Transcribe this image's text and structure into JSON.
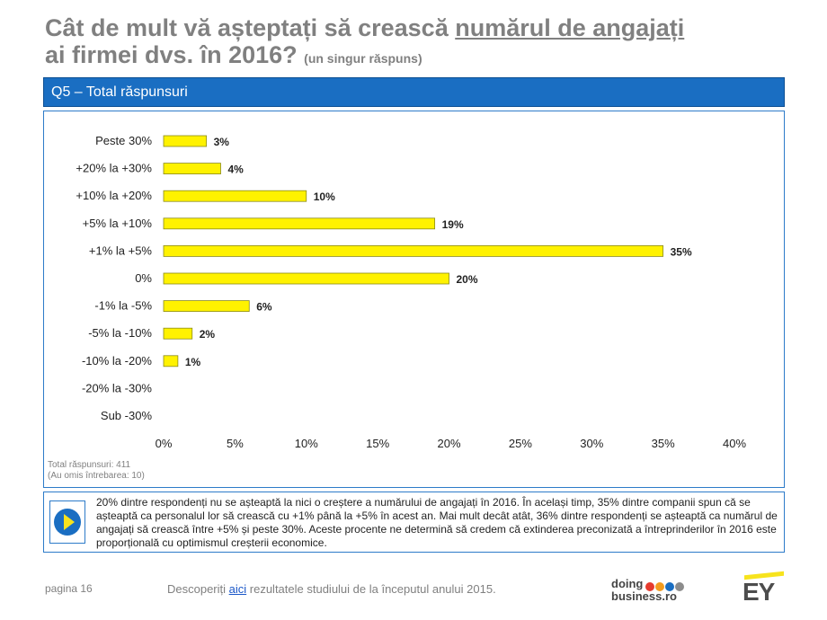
{
  "header": {
    "title_part1": "Cât de mult vă așteptați să crească ",
    "title_underlined": "numărul de angajați",
    "title_part2": "ai firmei dvs. în 2016?",
    "title_note": "(un singur răspuns)"
  },
  "section_bar": {
    "label": "Q5 – Total răspunsuri"
  },
  "chart_data": {
    "type": "bar",
    "orientation": "horizontal",
    "categories": [
      "Peste 30%",
      "+20% la +30%",
      "+10% la +20%",
      "+5% la +10%",
      "+1% la +5%",
      "0%",
      "-1% la -5%",
      "-5% la -10%",
      "-10% la -20%",
      "-20% la -30%",
      "Sub -30%"
    ],
    "values": [
      3,
      4,
      10,
      19,
      35,
      20,
      6,
      2,
      1,
      null,
      null
    ],
    "data_labels": [
      "3%",
      "4%",
      "10%",
      "19%",
      "35%",
      "20%",
      "6%",
      "2%",
      "1%",
      "",
      ""
    ],
    "xlim": [
      0,
      40
    ],
    "xticks": [
      "0%",
      "5%",
      "10%",
      "15%",
      "20%",
      "25%",
      "30%",
      "35%",
      "40%"
    ],
    "bar_color": "#fff200",
    "bar_edge_color": "#8a8a1a",
    "grid": false
  },
  "footnote": {
    "line1": "Total răspunsuri: 411",
    "line2": "(Au omis întrebarea: 10)"
  },
  "summary": {
    "icon": "play-icon",
    "text": "20% dintre respondenți nu se așteaptă la nici o creștere a numărului de angajați în 2016. În același timp, 35% dintre companii spun că se așteaptă ca personalul lor să crească cu +1% până la +5% în acest an. Mai mult decât atât, 36% dintre respondenți se așteaptă ca numărul de angajați să crească între +5% și peste 30%. Aceste procente ne determină să credem că extinderea preconizată a întreprinderilor în 2016 este proporțională cu optimismul creșterii economice."
  },
  "footer": {
    "page": "pagina 16",
    "discover_before": "Descoperiți ",
    "discover_link": "aici",
    "discover_after": " rezultatele studiului de la începutul anului 2015.",
    "logo1_line1": "doing",
    "logo1_line2": "business.ro",
    "logo1_dot_colors": [
      "#e63b2e",
      "#f39c1f",
      "#1a6ec2",
      "#8c8c8c"
    ],
    "logo2": "EY"
  },
  "colors": {
    "accent_blue": "#1a6ec2",
    "title_gray": "#808080",
    "ey_yellow": "#f7e31d"
  }
}
